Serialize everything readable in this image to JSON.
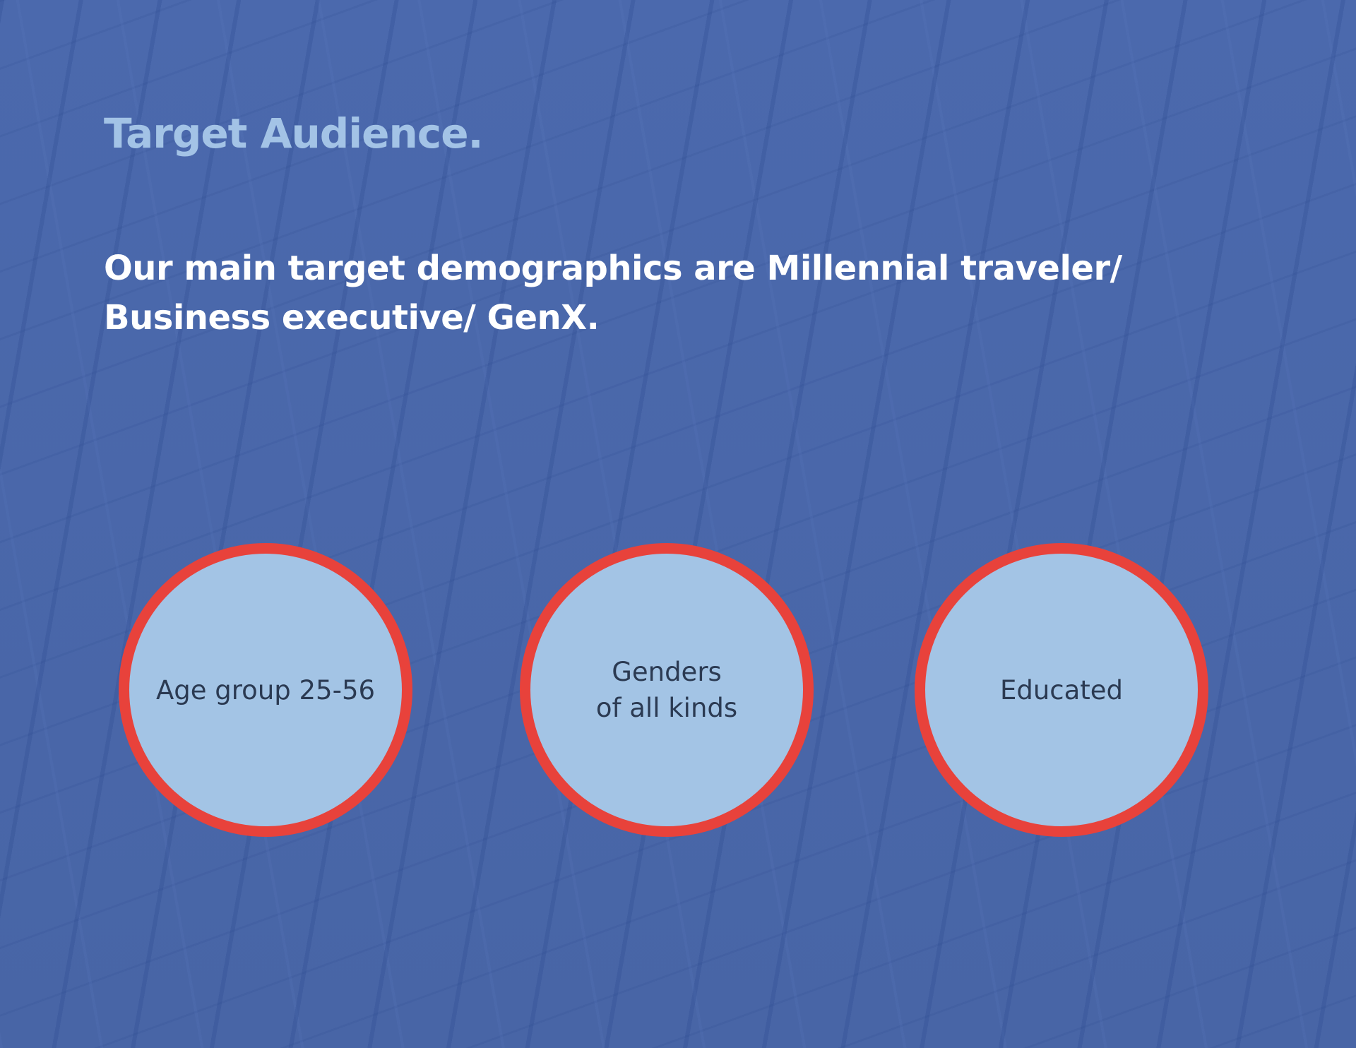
{
  "slide": {
    "title": "Target Audience.",
    "body": "Our main target demographics are Millennial traveler/ Business executive/ GenX.",
    "circles": [
      {
        "line1": "Age group 25-56",
        "line2": ""
      },
      {
        "line1": "Genders",
        "line2": "of all kinds"
      },
      {
        "line1": "Educated",
        "line2": ""
      }
    ]
  },
  "colors": {
    "background": "#4a68aa",
    "title": "#a3c3e6",
    "circle_fill": "#a3c4e5",
    "circle_border": "#e8423b",
    "circle_text": "#2b3a52"
  }
}
